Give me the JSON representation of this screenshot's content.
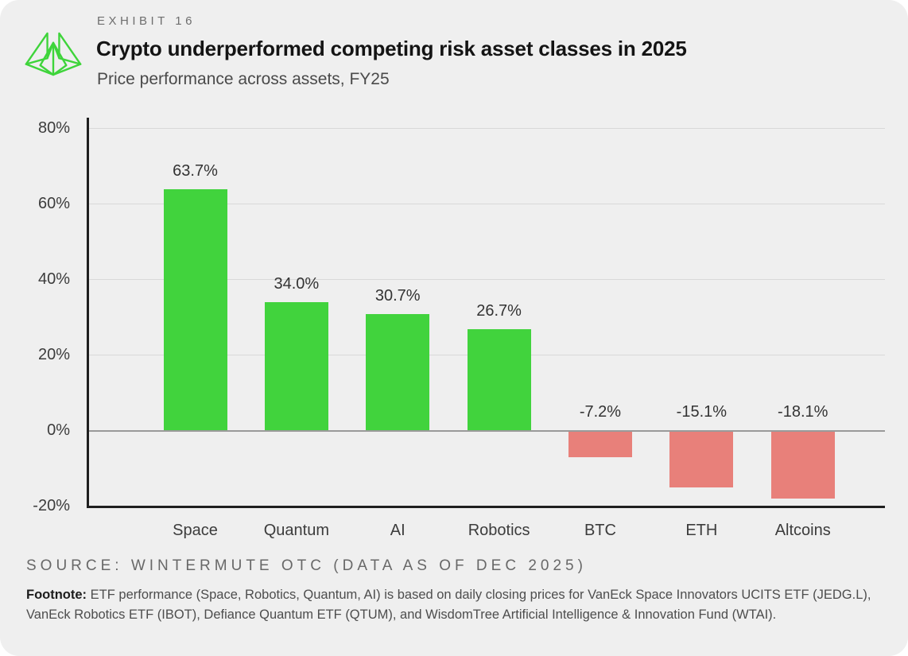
{
  "header": {
    "exhibit_label": "EXHIBIT 16",
    "title": "Crypto underperformed competing risk asset classes in 2025",
    "subtitle": "Price performance across assets, FY25",
    "logo_icon": "wintermute-logo"
  },
  "chart_data": {
    "type": "bar",
    "title": "Crypto underperformed competing risk asset classes in 2025",
    "subtitle": "Price performance across assets, FY25",
    "categories": [
      "Space",
      "Quantum",
      "AI",
      "Robotics",
      "BTC",
      "ETH",
      "Altcoins"
    ],
    "values": [
      63.7,
      34.0,
      30.7,
      26.7,
      -7.2,
      -15.1,
      -18.1
    ],
    "value_labels": [
      "63.7%",
      "34.0%",
      "30.7%",
      "26.7%",
      "-7.2%",
      "-15.1%",
      "-18.1%"
    ],
    "xlabel": "",
    "ylabel": "",
    "ylim": [
      -20,
      80
    ],
    "yticks": [
      80,
      60,
      40,
      20,
      0,
      -20
    ],
    "ytick_labels": [
      "80%",
      "60%",
      "40%",
      "20%",
      "0%",
      "-20%"
    ],
    "grid": "horizontal",
    "legend": "none",
    "positive_color": "#41d33d",
    "negative_color": "#e8807a"
  },
  "colors": {
    "background": "#efefef",
    "logo_green": "#3ed43a",
    "axis": "#1f1f1f",
    "zero_line": "#9a9a9a",
    "gridline": "#d8d8d8"
  },
  "footer": {
    "source": "SOURCE: WINTERMUTE OTC (DATA AS OF DEC 2025)",
    "footnote_label": "Footnote:",
    "footnote_text": " ETF performance (Space, Robotics, Quantum, AI) is based on daily closing prices for VanEck Space Innovators UCITS ETF (JEDG.L), VanEck Robotics ETF (IBOT), Defiance Quantum ETF (QTUM), and WisdomTree Artificial Intelligence & Innovation Fund (WTAI)."
  }
}
